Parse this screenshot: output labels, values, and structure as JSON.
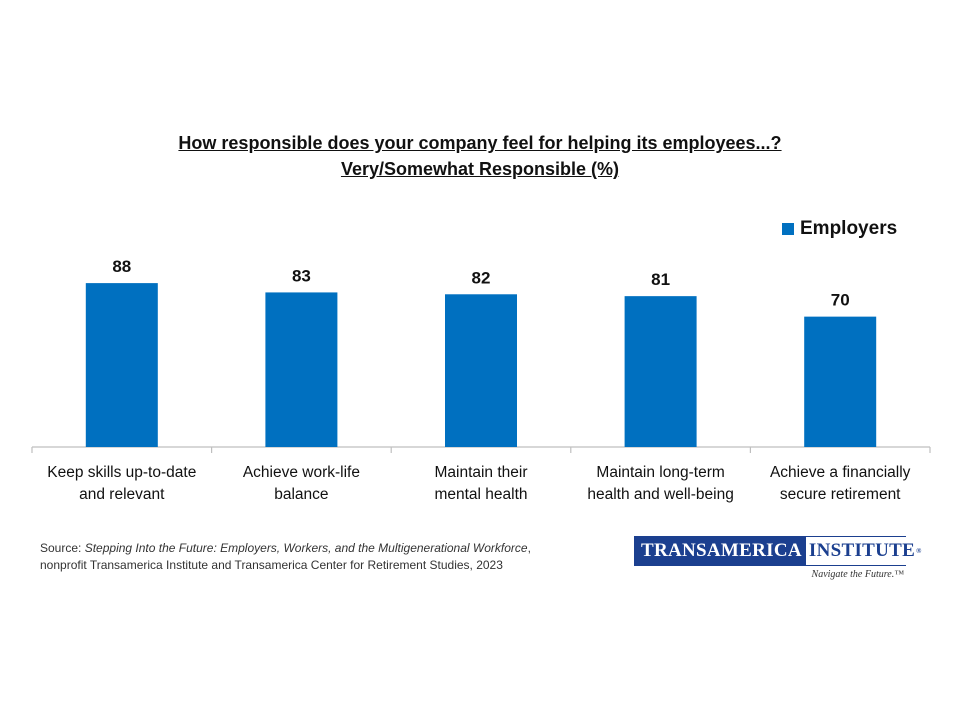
{
  "chart_data": {
    "type": "bar",
    "title": "How responsible does your company feel for helping its employees...?",
    "subtitle": "Very/Somewhat Responsible (%)",
    "categories": [
      [
        "Keep skills up-to-date",
        "and relevant"
      ],
      [
        "Achieve work-life",
        "balance"
      ],
      [
        "Maintain their",
        "mental health"
      ],
      [
        "Maintain long-term",
        "health and well-being"
      ],
      [
        "Achieve a financially",
        "secure retirement"
      ]
    ],
    "series": [
      {
        "name": "Employers",
        "values": [
          88,
          83,
          82,
          81,
          70
        ],
        "color": "#0070c0"
      }
    ],
    "ylim": [
      0,
      100
    ],
    "grid": false,
    "legend": "top-right",
    "data_labels": true
  },
  "footer": {
    "source_prefix": "Source: ",
    "source_title": "Stepping Into the Future: Employers, Workers, and the Multigenerational Workforce",
    "source_suffix": ",",
    "source_line2": "nonprofit Transamerica Institute and Transamerica Center for Retirement Studies, 2023"
  },
  "logo": {
    "left_text": "TRANSAMERICA",
    "right_text": "INSTITUTE",
    "reg_mark": "®",
    "tagline": "Navigate the Future.™"
  }
}
